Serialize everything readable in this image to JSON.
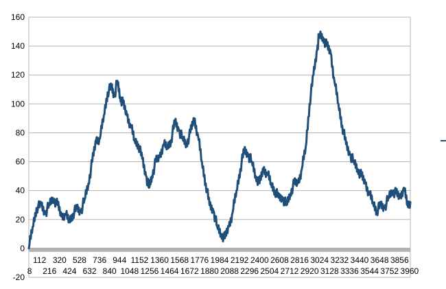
{
  "chart_data": {
    "type": "line",
    "title": "",
    "xlabel": "",
    "ylabel": "",
    "xlim": [
      0,
      3968
    ],
    "ylim": [
      -20,
      160
    ],
    "y_ticks": [
      -20,
      0,
      20,
      40,
      60,
      80,
      100,
      120,
      140,
      160
    ],
    "x_ticks_top": [
      "112",
      "320",
      "528",
      "736",
      "944",
      "1152",
      "1360",
      "1568",
      "1776",
      "1984",
      "2192",
      "2400",
      "2608",
      "2816",
      "3024",
      "3232",
      "3440",
      "3648",
      "3856"
    ],
    "x_ticks_bottom": [
      "8",
      "216",
      "424",
      "632",
      "840",
      "1048",
      "1256",
      "1464",
      "1672",
      "1880",
      "2088",
      "2296",
      "2504",
      "2712",
      "2920",
      "3128",
      "3336",
      "3544",
      "3752",
      "3960"
    ],
    "grid": true,
    "legend": "right",
    "colors": {
      "series": "#1f4e79",
      "grid": "#b3b3b3",
      "x_axis_band": "#b3b3b3",
      "axis": "#b3b3b3"
    },
    "series": [
      {
        "points": [
          [
            0,
            0
          ],
          [
            40,
            15
          ],
          [
            80,
            28
          ],
          [
            130,
            30
          ],
          [
            170,
            24
          ],
          [
            210,
            30
          ],
          [
            250,
            35
          ],
          [
            300,
            30
          ],
          [
            340,
            22
          ],
          [
            380,
            24
          ],
          [
            420,
            19
          ],
          [
            460,
            24
          ],
          [
            500,
            28
          ],
          [
            540,
            25
          ],
          [
            580,
            34
          ],
          [
            620,
            45
          ],
          [
            660,
            60
          ],
          [
            700,
            75
          ],
          [
            740,
            76
          ],
          [
            780,
            92
          ],
          [
            820,
            108
          ],
          [
            860,
            112
          ],
          [
            890,
            105
          ],
          [
            920,
            116
          ],
          [
            950,
            105
          ],
          [
            980,
            100
          ],
          [
            1020,
            92
          ],
          [
            1060,
            85
          ],
          [
            1100,
            75
          ],
          [
            1140,
            72
          ],
          [
            1180,
            62
          ],
          [
            1220,
            50
          ],
          [
            1250,
            42
          ],
          [
            1280,
            50
          ],
          [
            1320,
            60
          ],
          [
            1360,
            63
          ],
          [
            1400,
            72
          ],
          [
            1440,
            70
          ],
          [
            1480,
            75
          ],
          [
            1520,
            88
          ],
          [
            1560,
            82
          ],
          [
            1600,
            76
          ],
          [
            1640,
            72
          ],
          [
            1680,
            80
          ],
          [
            1720,
            90
          ],
          [
            1760,
            78
          ],
          [
            1800,
            60
          ],
          [
            1840,
            45
          ],
          [
            1880,
            30
          ],
          [
            1920,
            26
          ],
          [
            1960,
            15
          ],
          [
            2000,
            10
          ],
          [
            2040,
            7
          ],
          [
            2080,
            15
          ],
          [
            2120,
            25
          ],
          [
            2160,
            40
          ],
          [
            2200,
            55
          ],
          [
            2240,
            68
          ],
          [
            2280,
            65
          ],
          [
            2320,
            60
          ],
          [
            2360,
            50
          ],
          [
            2400,
            45
          ],
          [
            2440,
            55
          ],
          [
            2480,
            52
          ],
          [
            2520,
            45
          ],
          [
            2560,
            40
          ],
          [
            2600,
            35
          ],
          [
            2640,
            35
          ],
          [
            2680,
            30
          ],
          [
            2720,
            38
          ],
          [
            2760,
            45
          ],
          [
            2800,
            45
          ],
          [
            2840,
            55
          ],
          [
            2880,
            70
          ],
          [
            2920,
            100
          ],
          [
            2960,
            120
          ],
          [
            3000,
            138
          ],
          [
            3020,
            148
          ],
          [
            3060,
            146
          ],
          [
            3100,
            140
          ],
          [
            3140,
            135
          ],
          [
            3180,
            115
          ],
          [
            3220,
            100
          ],
          [
            3260,
            85
          ],
          [
            3300,
            72
          ],
          [
            3340,
            65
          ],
          [
            3380,
            60
          ],
          [
            3420,
            55
          ],
          [
            3460,
            50
          ],
          [
            3500,
            45
          ],
          [
            3540,
            38
          ],
          [
            3580,
            32
          ],
          [
            3620,
            26
          ],
          [
            3660,
            30
          ],
          [
            3700,
            28
          ],
          [
            3740,
            35
          ],
          [
            3780,
            40
          ],
          [
            3820,
            38
          ],
          [
            3860,
            35
          ],
          [
            3900,
            42
          ],
          [
            3940,
            30
          ],
          [
            3968,
            32
          ]
        ]
      }
    ]
  }
}
